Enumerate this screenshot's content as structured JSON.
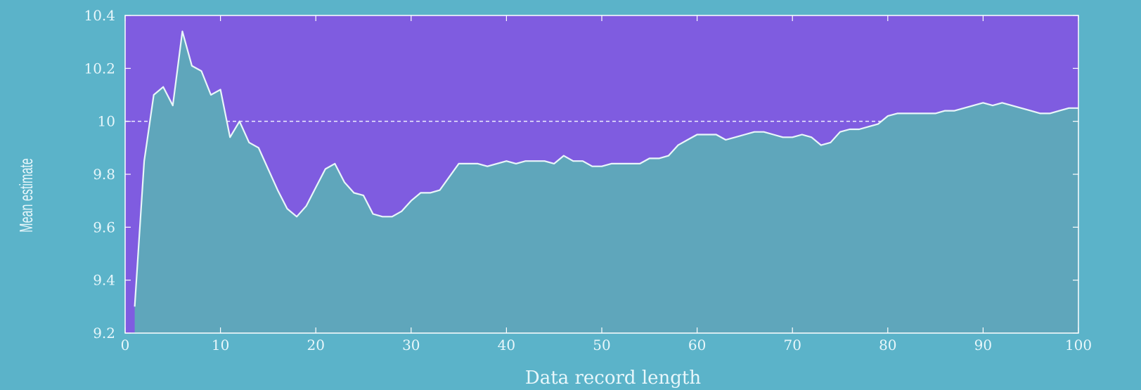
{
  "chart_data": {
    "type": "area",
    "xlabel": "Data record length",
    "ylabel": "Mean estimate",
    "xlim": [
      0,
      100
    ],
    "ylim": [
      9.2,
      10.4
    ],
    "xticks": [
      0,
      10,
      20,
      30,
      40,
      50,
      60,
      70,
      80,
      90,
      100
    ],
    "yticks": [
      9.2,
      9.4,
      9.6,
      9.8,
      10,
      10.2,
      10.4
    ],
    "xtick_labels": [
      "0",
      "10",
      "20",
      "30",
      "40",
      "50",
      "60",
      "70",
      "80",
      "90",
      "100"
    ],
    "ytick_labels": [
      "9.2",
      "9.4",
      "9.6",
      "9.8",
      "10",
      "10.2",
      "10.4"
    ],
    "reference_line": {
      "y": 10,
      "style": "dashed"
    },
    "grid": false,
    "series": [
      {
        "x": [
          1,
          2,
          3,
          4,
          5,
          6,
          7,
          8,
          9,
          10,
          11,
          12,
          13,
          14,
          15,
          16,
          17,
          18,
          19,
          20,
          21,
          22,
          23,
          24,
          25,
          26,
          27,
          28,
          29,
          30,
          31,
          32,
          33,
          34,
          35,
          36,
          37,
          38,
          39,
          40,
          41,
          42,
          43,
          44,
          45,
          46,
          47,
          48,
          49,
          50,
          51,
          52,
          53,
          54,
          55,
          56,
          57,
          58,
          59,
          60,
          61,
          62,
          63,
          64,
          65,
          66,
          67,
          68,
          69,
          70,
          71,
          72,
          73,
          74,
          75,
          76,
          77,
          78,
          79,
          80,
          81,
          82,
          83,
          84,
          85,
          86,
          87,
          88,
          89,
          90,
          91,
          92,
          93,
          94,
          95,
          96,
          97,
          98,
          99,
          100
        ],
        "values": [
          9.3,
          9.85,
          10.1,
          10.13,
          10.06,
          10.34,
          10.21,
          10.19,
          10.1,
          10.12,
          9.94,
          10.0,
          9.92,
          9.9,
          9.82,
          9.74,
          9.67,
          9.64,
          9.68,
          9.75,
          9.82,
          9.84,
          9.77,
          9.73,
          9.72,
          9.65,
          9.64,
          9.64,
          9.66,
          9.7,
          9.73,
          9.73,
          9.74,
          9.79,
          9.84,
          9.84,
          9.84,
          9.83,
          9.84,
          9.85,
          9.84,
          9.85,
          9.85,
          9.85,
          9.84,
          9.87,
          9.85,
          9.85,
          9.83,
          9.83,
          9.84,
          9.84,
          9.84,
          9.84,
          9.86,
          9.86,
          9.87,
          9.91,
          9.93,
          9.95,
          9.95,
          9.95,
          9.93,
          9.94,
          9.95,
          9.96,
          9.96,
          9.95,
          9.94,
          9.94,
          9.95,
          9.94,
          9.91,
          9.92,
          9.96,
          9.97,
          9.97,
          9.98,
          9.99,
          10.02,
          10.03,
          10.03,
          10.03,
          10.03,
          10.03,
          10.04,
          10.04,
          10.05,
          10.06,
          10.07,
          10.06,
          10.07,
          10.06,
          10.05,
          10.04,
          10.03,
          10.03,
          10.04,
          10.05,
          10.05
        ]
      }
    ],
    "colors": {
      "background": "#5bb3c9",
      "region_above": "#7f5ce0",
      "region_below": "#5fa6bb",
      "line": "#e9f6f9",
      "reference": "#eeeeff",
      "text": "#e8f7fb"
    }
  }
}
